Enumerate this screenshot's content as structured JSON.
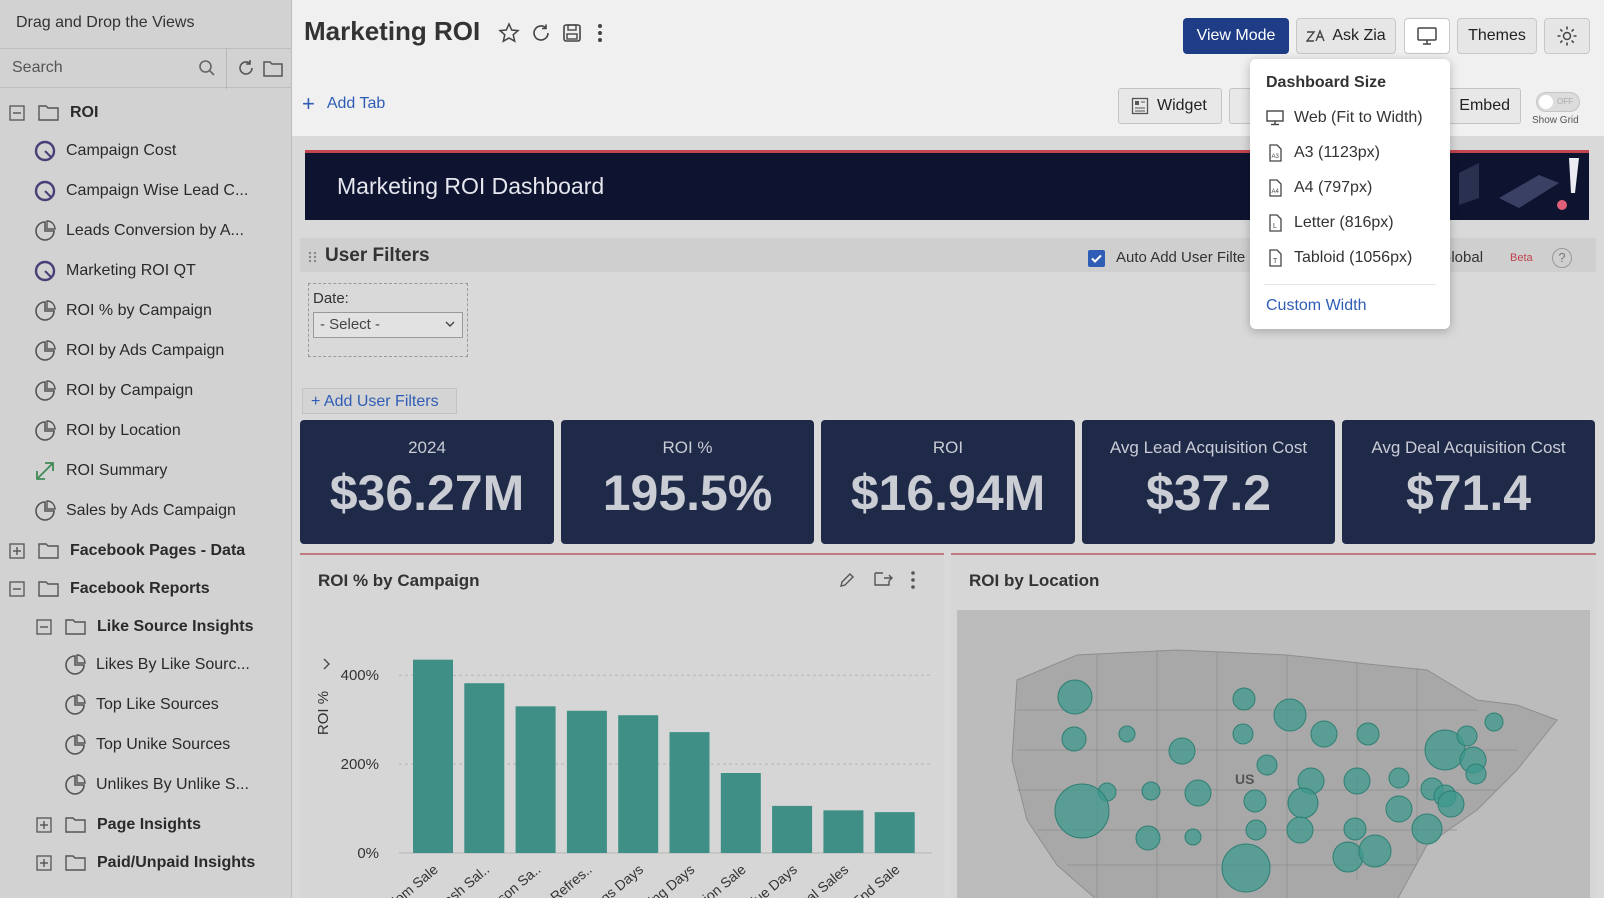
{
  "sidebar": {
    "title": "Drag and Drop the Views",
    "search_placeholder": "Search",
    "tree": [
      {
        "label": "ROI",
        "kind": "folder-open"
      },
      {
        "label": "Campaign Cost",
        "kind": "kpi"
      },
      {
        "label": "Campaign Wise Lead C...",
        "kind": "kpi"
      },
      {
        "label": "Leads Conversion by A...",
        "kind": "chart"
      },
      {
        "label": "Marketing ROI QT",
        "kind": "kpi"
      },
      {
        "label": "ROI % by Campaign",
        "kind": "chart"
      },
      {
        "label": "ROI by Ads Campaign",
        "kind": "chart"
      },
      {
        "label": "ROI by Campaign",
        "kind": "chart"
      },
      {
        "label": "ROI by Location",
        "kind": "chart"
      },
      {
        "label": "ROI Summary",
        "kind": "summary"
      },
      {
        "label": "Sales by Ads Campaign",
        "kind": "chart"
      },
      {
        "label": "Facebook Pages - Data",
        "kind": "folder-closed"
      },
      {
        "label": "Facebook Reports",
        "kind": "folder-open"
      },
      {
        "label": "Like Source Insights",
        "kind": "folder-open"
      },
      {
        "label": "Likes By Like Sourc...",
        "kind": "chart"
      },
      {
        "label": "Top Like Sources",
        "kind": "chart"
      },
      {
        "label": "Top Unike Sources",
        "kind": "chart"
      },
      {
        "label": "Unlikes By Unlike S...",
        "kind": "chart"
      },
      {
        "label": "Page Insights",
        "kind": "folder-closed"
      },
      {
        "label": "Paid/Unpaid Insights",
        "kind": "folder-closed"
      }
    ]
  },
  "header": {
    "title": "Marketing ROI",
    "view_mode": "View Mode",
    "ask_zia": "Ask Zia",
    "themes": "Themes"
  },
  "toolbar": {
    "add_tab": "Add Tab",
    "widget": "Widget",
    "embed": "Embed",
    "show_grid": "Show Grid",
    "toggle_state": "OFF"
  },
  "banner": {
    "title": "Marketing ROI Dashboard"
  },
  "filters": {
    "title": "User Filters",
    "auto_add": "Auto Add User Filte",
    "global": "s Global",
    "beta": "Beta",
    "help": "?",
    "date_label": "Date:",
    "date_value": "- Select -",
    "add_user_filters": "+ Add User Filters"
  },
  "kpis": [
    {
      "label": "2024",
      "value": "$36.27M"
    },
    {
      "label": "ROI %",
      "value": "195.5%"
    },
    {
      "label": "ROI",
      "value": "$16.94M"
    },
    {
      "label": "Avg Lead Acquisition Cost",
      "value": "$37.2"
    },
    {
      "label": "Avg Deal Acquisition Cost",
      "value": "$71.4"
    }
  ],
  "panels": {
    "roi_campaign_title": "ROI % by Campaign",
    "roi_location_title": "ROI by Location",
    "map_label": "US"
  },
  "dropdown": {
    "heading": "Dashboard Size",
    "items": [
      {
        "label": "Web (Fit to Width)",
        "icon": "monitor-icon"
      },
      {
        "label": "A3 (1123px)",
        "icon": "page-a3-icon"
      },
      {
        "label": "A4 (797px)",
        "icon": "page-a4-icon"
      },
      {
        "label": "Letter (816px)",
        "icon": "page-letter-icon"
      },
      {
        "label": "Tabloid (1056px)",
        "icon": "page-tabloid-icon"
      }
    ],
    "custom": "Custom Width"
  },
  "colors": {
    "accent": "#1f3c87",
    "link": "#2f5db5",
    "bar": "#3f8f87",
    "kpi_bg": "#1f2a48",
    "banner_bg": "#0e1430"
  },
  "chart_data": {
    "type": "bar",
    "title": "ROI % by Campaign",
    "xlabel": "",
    "ylabel": "ROI %",
    "ylim": [
      0,
      450
    ],
    "yticks": [
      "0%",
      "200%",
      "400%"
    ],
    "categories": [
      "Freedom Sale",
      "mer Flash Sal..",
      "Of Season Sa..",
      "drobe Refres..",
      "Savings Days",
      "Shopping Days",
      "a Fashion Sale",
      "ner Value Days",
      "Festival Sales",
      "Year End Sale"
    ],
    "values": [
      435,
      382,
      330,
      320,
      310,
      272,
      180,
      106,
      96,
      92
    ]
  }
}
